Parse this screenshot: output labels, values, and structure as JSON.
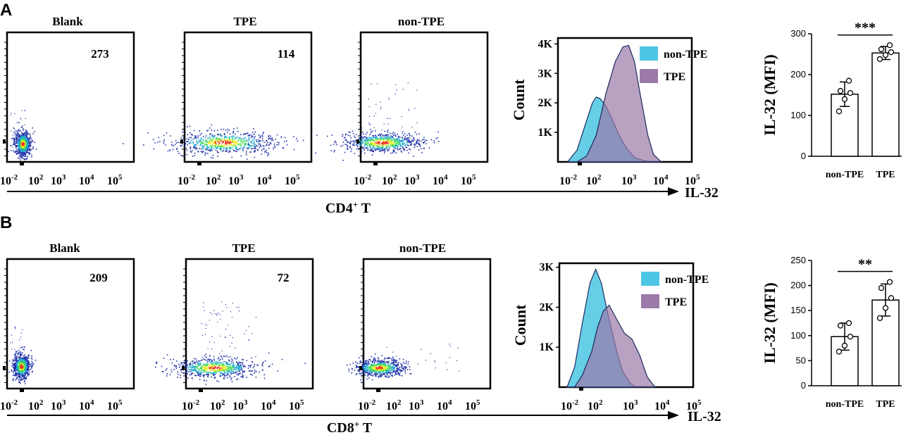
{
  "panels": [
    {
      "letter": "A",
      "cell_type_prefix": "CD4",
      "cell_type_sup": "+",
      "cell_type_suffix": " T",
      "x_axis_label": "IL-32",
      "flow_plots": [
        {
          "title": "Blank",
          "gate_count": "273"
        },
        {
          "title": "TPE",
          "gate_count": "114"
        },
        {
          "title": "non-TPE",
          "gate_count": ""
        }
      ],
      "log_ticks": [
        "10",
        "10",
        "10",
        "10",
        "10"
      ],
      "log_exps": [
        "-2",
        "2",
        "3",
        "4",
        "5"
      ]
    },
    {
      "letter": "B",
      "cell_type_prefix": "CD8",
      "cell_type_sup": "+",
      "cell_type_suffix": " T",
      "x_axis_label": "IL-32",
      "flow_plots": [
        {
          "title": "Blank",
          "gate_count": "209"
        },
        {
          "title": "TPE",
          "gate_count": "72"
        },
        {
          "title": "non-TPE",
          "gate_count": ""
        }
      ],
      "log_ticks": [
        "10",
        "10",
        "10",
        "10",
        "10"
      ],
      "log_exps": [
        "-2",
        "2",
        "3",
        "4",
        "5"
      ]
    }
  ],
  "histogram_colors": {
    "non_tpe": "#4cc6e4",
    "tpe": "#9b79a8",
    "edge": "#1c2a5c"
  },
  "flow_colors": [
    "#2233aa",
    "#22aacc",
    "#44dd55",
    "#eeee22",
    "#ee3322"
  ],
  "chart_data": [
    {
      "type": "area",
      "title": "CD4+ T IL-32 histogram",
      "ylabel": "Count",
      "yticks": [
        "1K",
        "2K",
        "3K",
        "4K"
      ],
      "ylim": [
        0,
        4200
      ],
      "legend": [
        "non-TPE",
        "TPE"
      ],
      "legend_position": "top-right",
      "series": [
        {
          "name": "non-TPE",
          "x_log": [
            -1.5,
            -1.0,
            -0.5,
            -0.2,
            0.0,
            0.2,
            0.5,
            0.8,
            1.2,
            1.6,
            2.0,
            2.5,
            3.0
          ],
          "values": [
            0,
            400,
            1400,
            2000,
            2200,
            2150,
            1900,
            1500,
            900,
            450,
            150,
            40,
            0
          ]
        },
        {
          "name": "TPE",
          "x_log": [
            -1.0,
            -0.5,
            0.0,
            0.5,
            1.0,
            1.4,
            1.7,
            2.0,
            2.3,
            2.7,
            3.0,
            3.4
          ],
          "values": [
            0,
            200,
            900,
            2300,
            3400,
            3900,
            3950,
            3400,
            2300,
            900,
            250,
            0
          ]
        }
      ]
    },
    {
      "type": "area",
      "title": "CD8+ T IL-32 histogram",
      "ylabel": "Count",
      "yticks": [
        "1K",
        "2K",
        "3K"
      ],
      "ylim": [
        0,
        3100
      ],
      "legend": [
        "non-TPE",
        "TPE"
      ],
      "legend_position": "top-right",
      "series": [
        {
          "name": "non-TPE",
          "x_log": [
            -1.6,
            -1.2,
            -0.8,
            -0.4,
            -0.1,
            0.2,
            0.5,
            0.8,
            1.0,
            1.3,
            1.7,
            2.0
          ],
          "values": [
            0,
            500,
            1600,
            2600,
            2950,
            2600,
            1900,
            1300,
            900,
            400,
            100,
            0
          ]
        },
        {
          "name": "TPE",
          "x_log": [
            -1.2,
            -0.8,
            -0.3,
            0.0,
            0.3,
            0.6,
            1.0,
            1.4,
            1.8,
            2.2,
            2.6,
            3.0
          ],
          "values": [
            0,
            300,
            900,
            1500,
            1900,
            2050,
            1700,
            1350,
            1200,
            800,
            250,
            0
          ]
        }
      ]
    },
    {
      "type": "bar",
      "title": "CD4+ T IL-32 MFI",
      "categories": [
        "non-TPE",
        "TPE"
      ],
      "values": [
        152,
        253
      ],
      "errors": [
        30,
        16
      ],
      "points": [
        [
          110,
          140,
          155,
          160,
          185
        ],
        [
          238,
          248,
          255,
          262,
          272
        ]
      ],
      "ylabel": "IL-32 (MFI)",
      "yticks": [
        "0",
        "100",
        "200",
        "300"
      ],
      "ylim": [
        0,
        300
      ],
      "significance": "***"
    },
    {
      "type": "bar",
      "title": "CD8+ T IL-32 MFI",
      "categories": [
        "non-TPE",
        "TPE"
      ],
      "values": [
        98,
        171
      ],
      "errors": [
        27,
        32
      ],
      "points": [
        [
          68,
          80,
          98,
          120,
          125
        ],
        [
          135,
          155,
          175,
          195,
          207
        ]
      ],
      "ylabel": "IL-32 (MFI)",
      "yticks": [
        "0",
        "50",
        "100",
        "150",
        "200",
        "250"
      ],
      "ylim": [
        0,
        250
      ],
      "significance": "**"
    }
  ]
}
